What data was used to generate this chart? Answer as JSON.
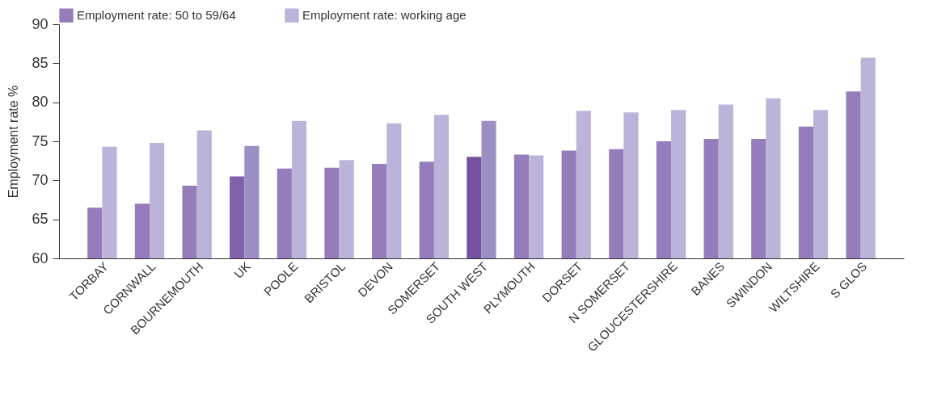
{
  "chart_data": {
    "type": "bar",
    "ylabel": "Employment rate %",
    "legend": "top",
    "categories": [
      "TORBAY",
      "CORNWALL",
      "BOURNEMOUTH",
      "UK",
      "POOLE",
      "BRISTOL",
      "DEVON",
      "SOMERSET",
      "SOUTH WEST",
      "PLYMOUTH",
      "DORSET",
      "N SOMERSET",
      "GLOUCESTERSHIRE",
      "BANES",
      "SWINDON",
      "WILTSHIRE",
      "S GLOS"
    ],
    "ylim": [
      60,
      90
    ],
    "yticks": [
      60,
      65,
      70,
      75,
      80,
      85,
      90
    ],
    "series": [
      {
        "name": "Employment rate: 50 to 59/64",
        "color": "#947dba",
        "colors": [
          "#947dba",
          "#947dba",
          "#947dba",
          "#7f60a9",
          "#947dba",
          "#947dba",
          "#947dba",
          "#947dba",
          "#74529f",
          "#947dba",
          "#947dba",
          "#947dba",
          "#947dba",
          "#947dba",
          "#947dba",
          "#947dba",
          "#947dba"
        ],
        "values": [
          66.5,
          67.0,
          69.3,
          70.5,
          71.5,
          71.6,
          72.1,
          72.4,
          73.0,
          73.3,
          73.8,
          74.0,
          75.0,
          75.3,
          75.3,
          76.9,
          81.4
        ]
      },
      {
        "name": "Employment rate: working age",
        "color": "#bbb3d9",
        "colors": [
          "#bbb3d9",
          "#bbb3d9",
          "#bbb3d9",
          "#9c8fc4",
          "#bbb3d9",
          "#bbb3d9",
          "#bbb3d9",
          "#bbb3d9",
          "#9c8fc4",
          "#bbb3d9",
          "#bbb3d9",
          "#bbb3d9",
          "#bbb3d9",
          "#bbb3d9",
          "#bbb3d9",
          "#bbb3d9",
          "#bbb3d9"
        ],
        "values": [
          74.3,
          74.8,
          76.4,
          74.4,
          77.6,
          72.6,
          77.3,
          78.4,
          77.6,
          73.2,
          78.9,
          78.7,
          79.0,
          79.7,
          80.5,
          79.0,
          85.7
        ]
      }
    ]
  }
}
